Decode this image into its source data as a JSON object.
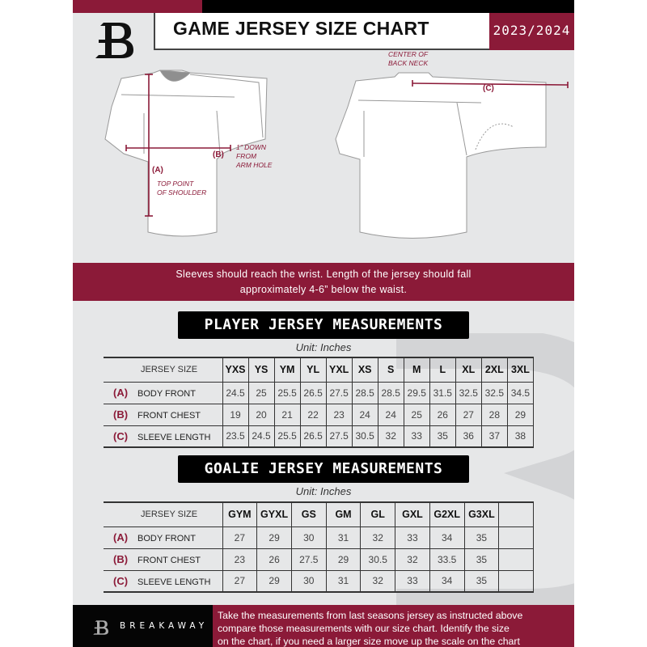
{
  "header": {
    "title": "GAME JERSEY SIZE CHART",
    "season": "2023/2024"
  },
  "diagram": {
    "labels": {
      "a": "(A)",
      "b": "(B)",
      "c": "(C)",
      "shoulder": [
        "TOP POINT",
        "OF SHOULDER"
      ],
      "armhole": [
        "1\" DOWN",
        "FROM",
        "ARM HOLE"
      ],
      "back_neck": [
        "CENTER OF",
        "BACK NECK"
      ]
    }
  },
  "instructions": [
    "Sleeves should reach the wrist. Length of the jersey should fall",
    "approximately 4-6” below the waist."
  ],
  "player": {
    "title": "PLAYER JERSEY MEASUREMENTS",
    "unit": "Unit: Inches",
    "size_label": "JERSEY SIZE",
    "sizes": [
      "YXS",
      "YS",
      "YM",
      "YL",
      "YXL",
      "XS",
      "S",
      "M",
      "L",
      "XL",
      "2XL",
      "3XL"
    ],
    "rows": [
      {
        "code": "(A)",
        "name": "BODY FRONT",
        "values": [
          "24.5",
          "25",
          "25.5",
          "26.5",
          "27.5",
          "28.5",
          "28.5",
          "29.5",
          "31.5",
          "32.5",
          "32.5",
          "34.5"
        ]
      },
      {
        "code": "(B)",
        "name": "FRONT CHEST",
        "values": [
          "19",
          "20",
          "21",
          "22",
          "23",
          "24",
          "24",
          "25",
          "26",
          "27",
          "28",
          "29"
        ]
      },
      {
        "code": "(C)",
        "name": "SLEEVE LENGTH",
        "values": [
          "23.5",
          "24.5",
          "25.5",
          "26.5",
          "27.5",
          "30.5",
          "32",
          "33",
          "35",
          "36",
          "37",
          "38"
        ]
      }
    ]
  },
  "goalie": {
    "title": "GOALIE JERSEY MEASUREMENTS",
    "unit": "Unit: Inches",
    "size_label": "JERSEY SIZE",
    "sizes": [
      "GYM",
      "GYXL",
      "GS",
      "GM",
      "GL",
      "GXL",
      "G2XL",
      "G3XL",
      ""
    ],
    "rows": [
      {
        "code": "(A)",
        "name": "BODY FRONT",
        "values": [
          "27",
          "29",
          "30",
          "31",
          "32",
          "33",
          "34",
          "35",
          ""
        ]
      },
      {
        "code": "(B)",
        "name": "FRONT CHEST",
        "values": [
          "23",
          "26",
          "27.5",
          "29",
          "30.5",
          "32",
          "33.5",
          "35",
          ""
        ]
      },
      {
        "code": "(C)",
        "name": "SLEEVE LENGTH",
        "values": [
          "27",
          "29",
          "30",
          "31",
          "32",
          "33",
          "34",
          "35",
          ""
        ]
      }
    ]
  },
  "footer": {
    "brand": "BREAKAWAY",
    "text": [
      "Take the measurements from last seasons jersey as instructed above",
      "compare those measurements  with our size chart. Identify the size",
      "on the chart, if you need a larger size move up the scale on the chart"
    ]
  },
  "colors": {
    "accent": "#8b1a38",
    "background": "#e6e7e8",
    "dark": "#000000"
  }
}
